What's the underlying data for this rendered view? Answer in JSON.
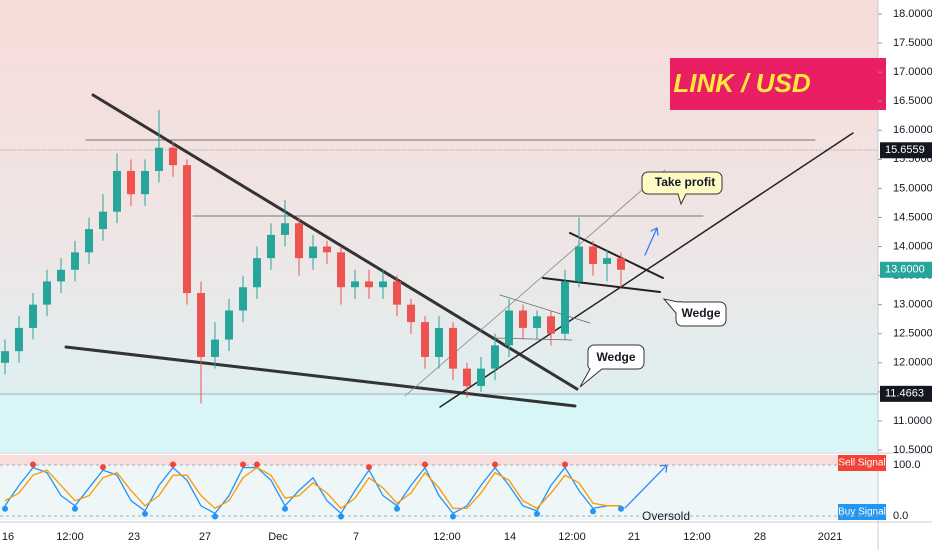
{
  "chart_data": {
    "type": "candlestick",
    "title": "LINK / USD",
    "up_color": "#26a69a",
    "down_color": "#ef5350",
    "open": [
      12.0,
      12.2,
      12.6,
      13.0,
      13.4,
      13.6,
      13.9,
      14.3,
      14.6,
      15.3,
      14.9,
      15.3,
      15.7,
      15.4,
      13.2,
      12.1,
      12.4,
      12.9,
      13.3,
      13.8,
      14.2,
      14.4,
      13.8,
      14.0,
      13.9,
      13.3,
      13.4,
      13.3,
      13.4,
      13.0,
      12.7,
      12.1,
      12.6,
      11.9,
      11.6,
      11.9,
      12.3,
      12.9,
      12.6,
      12.8,
      12.5,
      13.4,
      14.0,
      13.7,
      13.8
    ],
    "high": [
      12.4,
      12.8,
      13.2,
      13.6,
      13.8,
      14.1,
      14.5,
      14.9,
      15.6,
      15.5,
      15.5,
      16.35,
      15.8,
      15.5,
      13.4,
      12.7,
      13.1,
      13.5,
      14.0,
      14.4,
      14.8,
      14.5,
      14.2,
      14.1,
      14.0,
      13.6,
      13.6,
      13.6,
      13.5,
      13.1,
      12.8,
      12.8,
      12.7,
      12.0,
      12.1,
      12.5,
      13.1,
      13.0,
      12.9,
      12.9,
      13.6,
      14.5,
      14.1,
      13.95,
      13.9
    ],
    "low": [
      11.8,
      12.0,
      12.4,
      12.8,
      13.2,
      13.4,
      13.7,
      14.1,
      14.4,
      14.7,
      14.7,
      15.1,
      15.2,
      13.0,
      11.3,
      11.9,
      12.2,
      12.7,
      13.1,
      13.6,
      14.0,
      13.5,
      13.6,
      13.7,
      13.0,
      13.1,
      13.1,
      13.1,
      12.8,
      12.5,
      11.9,
      11.9,
      11.7,
      11.4,
      11.5,
      11.7,
      12.1,
      12.4,
      12.4,
      12.3,
      12.4,
      13.3,
      13.5,
      13.4,
      13.3
    ],
    "close": [
      12.2,
      12.6,
      13.0,
      13.4,
      13.6,
      13.9,
      14.3,
      14.6,
      15.3,
      14.9,
      15.3,
      15.7,
      15.4,
      13.2,
      12.1,
      12.4,
      12.9,
      13.3,
      13.8,
      14.2,
      14.4,
      13.8,
      14.0,
      13.9,
      13.3,
      13.4,
      13.3,
      13.4,
      13.0,
      12.7,
      12.1,
      12.6,
      11.9,
      11.6,
      11.9,
      12.3,
      12.9,
      12.6,
      12.8,
      12.5,
      13.4,
      14.0,
      13.7,
      13.8,
      13.6
    ],
    "x_labels": [
      "16",
      "12:00",
      "23",
      "27",
      "Dec",
      "7",
      "12:00",
      "14",
      "12:00",
      "21",
      "12:00",
      "28",
      "2021"
    ],
    "ylim": [
      10.5,
      18.0
    ],
    "yticks": [
      {
        "value": 10.5,
        "label": "10.5000"
      },
      {
        "value": 11,
        "label": "11.0000"
      },
      {
        "value": 11.5,
        "label": "11.5000"
      },
      {
        "value": 12,
        "label": "12.0000"
      },
      {
        "value": 12.5,
        "label": "12.5000"
      },
      {
        "value": 13,
        "label": "13.0000"
      },
      {
        "value": 13.5,
        "label": "13.5000"
      },
      {
        "value": 14,
        "label": "14.0000"
      },
      {
        "value": 14.5,
        "label": "14.5000"
      },
      {
        "value": 15,
        "label": "15.0000"
      },
      {
        "value": 15.5,
        "label": "15.5000"
      },
      {
        "value": 16,
        "label": "16.0000"
      },
      {
        "value": 16.5,
        "label": "16.5000"
      },
      {
        "value": 17,
        "label": "17.0000"
      },
      {
        "value": 17.5,
        "label": "17.5000"
      },
      {
        "value": 18,
        "label": "18.0000"
      }
    ],
    "price_markers": [
      {
        "value": 15.6559,
        "label": "15.6559",
        "color": "#131722"
      },
      {
        "value": 13.6,
        "label": "13.6000",
        "color": "#26a69a"
      },
      {
        "value": 11.4663,
        "label": "11.4663",
        "color": "#131722"
      }
    ],
    "annotations": [
      "Take profit",
      "Wedge",
      "Wedge",
      "Oversold"
    ],
    "oscillator": {
      "ylim": [
        0,
        100
      ],
      "yticks": [
        {
          "value": 100,
          "label": "100.0"
        },
        {
          "value": 0,
          "label": "0.0"
        }
      ],
      "series": [
        {
          "color": "#2196f3",
          "values": [
            20,
            60,
            95,
            85,
            40,
            20,
            55,
            90,
            80,
            30,
            10,
            60,
            95,
            70,
            20,
            5,
            40,
            95,
            95,
            70,
            20,
            50,
            75,
            30,
            5,
            50,
            90,
            40,
            20,
            60,
            95,
            40,
            5,
            20,
            60,
            95,
            60,
            20,
            10,
            60,
            95,
            50,
            15,
            20,
            20
          ]
        },
        {
          "color": "#ff9800",
          "values": [
            30,
            45,
            80,
            90,
            60,
            30,
            40,
            75,
            85,
            50,
            20,
            40,
            80,
            80,
            40,
            15,
            30,
            75,
            95,
            80,
            35,
            40,
            65,
            45,
            15,
            35,
            75,
            55,
            25,
            45,
            85,
            55,
            15,
            15,
            45,
            85,
            70,
            30,
            15,
            45,
            80,
            65,
            25,
            20,
            20
          ]
        }
      ],
      "signals": [
        "Sell Signal",
        "Buy Signal"
      ]
    }
  }
}
